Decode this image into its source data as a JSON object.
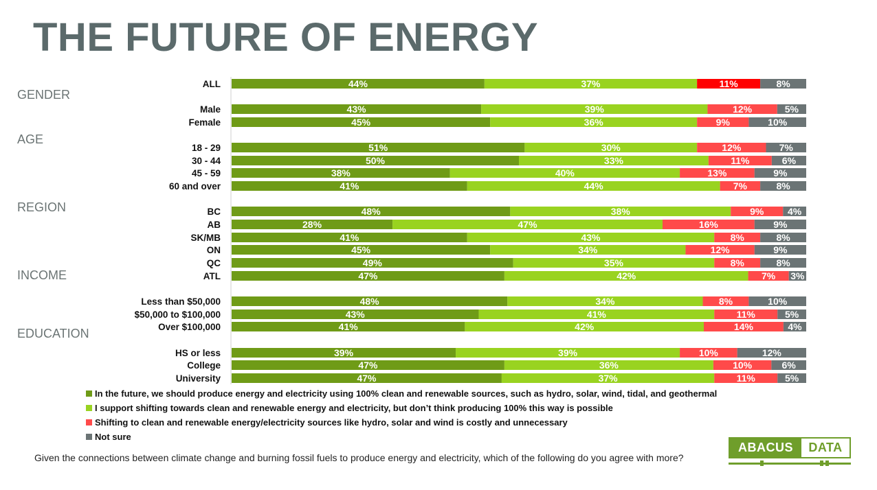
{
  "title": "THE FUTURE OF ENERGY",
  "colors": {
    "clean": "#6f9b17",
    "support": "#99d320",
    "costly": "#ff4a4a",
    "costly_all": "#ff0000",
    "not_sure": "#6b7475"
  },
  "groups": [
    "GENDER",
    "AGE",
    "REGION",
    "INCOME",
    "EDUCATION"
  ],
  "chart_data": {
    "type": "bar",
    "orientation": "horizontal",
    "stacked": true,
    "normalized": true,
    "categories": [
      "ALL",
      "Male",
      "Female",
      "18 - 29",
      "30 - 44",
      "45 - 59",
      "60 and over",
      "BC",
      "AB",
      "SK/MB",
      "ON",
      "QC",
      "ATL",
      "Less than $50,000",
      "$50,000 to $100,000",
      "Over $100,000",
      "HS or less",
      "College",
      "University"
    ],
    "series": [
      {
        "name": "In the future, we should produce energy and electricity using 100% clean and renewable sources, such as hydro, solar, wind, tidal, and geothermal",
        "values": [
          44,
          43,
          45,
          51,
          50,
          38,
          41,
          48,
          28,
          41,
          45,
          49,
          47,
          48,
          43,
          41,
          39,
          47,
          47
        ]
      },
      {
        "name": "I support shifting towards clean and renewable energy and electricity, but don’t think producing 100% this way is possible",
        "values": [
          37,
          39,
          36,
          30,
          33,
          40,
          44,
          38,
          47,
          43,
          34,
          35,
          42,
          34,
          41,
          42,
          39,
          36,
          37
        ]
      },
      {
        "name": "Shifting to clean and renewable energy/electricity sources like hydro, solar and wind is costly and unnecessary",
        "values": [
          11,
          12,
          9,
          12,
          11,
          13,
          7,
          9,
          16,
          8,
          12,
          8,
          7,
          8,
          11,
          14,
          10,
          10,
          11
        ]
      },
      {
        "name": "Not sure",
        "values": [
          8,
          5,
          10,
          7,
          6,
          9,
          8,
          4,
          9,
          8,
          9,
          8,
          3,
          10,
          5,
          4,
          12,
          6,
          5
        ]
      }
    ],
    "value_suffix": "%",
    "title": "THE FUTURE OF ENERGY",
    "xlabel": "",
    "ylabel": ""
  },
  "question": "Given the connections between climate change and burning fossil fuels to produce energy and electricity, which of the following do you agree with more?",
  "logo": {
    "left": "ABACUS",
    "right": "DATA"
  }
}
